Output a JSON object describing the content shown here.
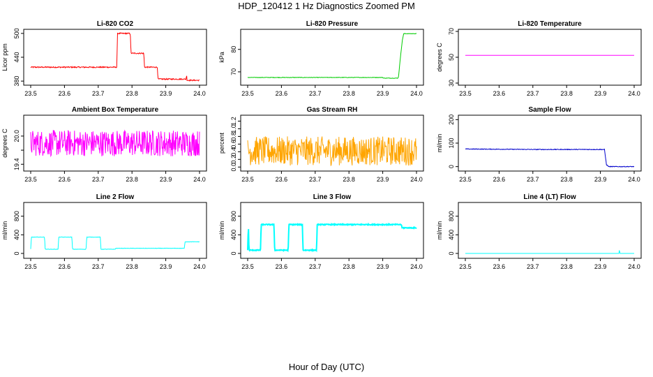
{
  "figure": {
    "title": "HDP_120412  1 Hz Diagnostics Zoomed PM",
    "xlabel": "Hour of Day (UTC)"
  },
  "chart_data": [
    {
      "type": "line",
      "title": "Li-820 CO2",
      "ylabel": "Licor ppm",
      "color": "#ff0000",
      "xlim": [
        23.5,
        24.0
      ],
      "ylim": [
        375,
        505
      ],
      "xticks": [
        "23.5",
        "23.6",
        "23.7",
        "23.8",
        "23.9",
        "24.0"
      ],
      "yticks": [
        380,
        440,
        500
      ],
      "yticklabels": [
        "380",
        "440",
        "500"
      ],
      "noise": 1.5,
      "series": [
        {
          "x": [
            23.5,
            23.755,
            23.757,
            23.795,
            23.797,
            23.835,
            23.837,
            23.875,
            23.877,
            23.96,
            23.962,
            23.963,
            23.965,
            24.0
          ],
          "y": [
            415,
            415,
            500,
            500,
            450,
            450,
            415,
            415,
            385,
            385,
            395,
            382,
            382,
            382
          ]
        }
      ]
    },
    {
      "type": "line",
      "title": "Li-820 Pressure",
      "ylabel": "kPa",
      "color": "#00cc00",
      "xlim": [
        23.5,
        24.0
      ],
      "ylim": [
        65,
        88
      ],
      "xticks": [
        "23.5",
        "23.6",
        "23.7",
        "23.8",
        "23.9",
        "24.0"
      ],
      "yticks": [
        70,
        80
      ],
      "yticklabels": [
        "70",
        "80"
      ],
      "noise": 0.1,
      "series": [
        {
          "x": [
            23.5,
            23.9,
            23.902,
            23.945,
            23.947,
            23.952,
            23.958,
            23.962,
            23.964,
            24.0
          ],
          "y": [
            67.5,
            67.5,
            67.2,
            67.2,
            68,
            76,
            84,
            87,
            87,
            87
          ]
        }
      ]
    },
    {
      "type": "line",
      "title": "Li-820 Temperature",
      "ylabel": "degrees C",
      "color": "#ff00ff",
      "xlim": [
        23.5,
        24.0
      ],
      "ylim": [
        30,
        70
      ],
      "xticks": [
        "23.5",
        "23.6",
        "23.7",
        "23.8",
        "23.9",
        "24.0"
      ],
      "yticks": [
        30,
        50,
        70
      ],
      "yticklabels": [
        "30",
        "50",
        "70"
      ],
      "noise": 0,
      "series": [
        {
          "x": [
            23.5,
            24.0
          ],
          "y": [
            51.5,
            51.5
          ]
        }
      ]
    },
    {
      "type": "line",
      "title": "Ambient Box Temperature",
      "ylabel": "degrees C",
      "color": "#ff00ff",
      "xlim": [
        23.5,
        24.0
      ],
      "ylim": [
        19.3,
        20.4
      ],
      "xticks": [
        "23.5",
        "23.6",
        "23.7",
        "23.8",
        "23.9",
        "24.0"
      ],
      "yticks": [
        19.4,
        19.7,
        20.0
      ],
      "yticklabels": [
        "19.4",
        "",
        "20.0"
      ],
      "noise": 0.28,
      "series": [
        {
          "x": [
            23.5,
            24.0
          ],
          "y": [
            19.85,
            19.85
          ]
        }
      ]
    },
    {
      "type": "line",
      "title": "Gas Stream RH",
      "ylabel": "percent",
      "color": "#ffa500",
      "xlim": [
        23.5,
        24.0
      ],
      "ylim": [
        -0.05,
        1.3
      ],
      "xticks": [
        "23.5",
        "23.6",
        "23.7",
        "23.8",
        "23.9",
        "24.0"
      ],
      "yticks": [
        0.0,
        0.2,
        0.4,
        0.6,
        0.8,
        1.0,
        1.2
      ],
      "yticklabels": [
        "0.0",
        "0.2",
        "0.4",
        "0.6",
        "0.8",
        "1.0",
        "1.2"
      ],
      "noise": 0.38,
      "series": [
        {
          "x": [
            23.5,
            24.0
          ],
          "y": [
            0.42,
            0.42
          ]
        }
      ]
    },
    {
      "type": "line",
      "title": "Sample Flow",
      "ylabel": "ml/min",
      "color": "#0000cc",
      "xlim": [
        23.5,
        24.0
      ],
      "ylim": [
        -10,
        210
      ],
      "xticks": [
        "23.5",
        "23.6",
        "23.7",
        "23.8",
        "23.9",
        "24.0"
      ],
      "yticks": [
        0,
        100,
        200
      ],
      "yticklabels": [
        "0",
        "100",
        "200"
      ],
      "noise": 1.5,
      "series": [
        {
          "x": [
            23.5,
            23.6,
            23.7,
            23.912,
            23.918,
            23.925,
            24.0
          ],
          "y": [
            75,
            74,
            73,
            73,
            8,
            0,
            0
          ]
        }
      ]
    },
    {
      "type": "line",
      "title": "Line 2 Flow",
      "ylabel": "ml/min",
      "color": "#00ffff",
      "xlim": [
        23.5,
        24.0
      ],
      "ylim": [
        -60,
        1050
      ],
      "xticks": [
        "23.5",
        "23.6",
        "23.7",
        "23.8",
        "23.9",
        "24.0"
      ],
      "yticks": [
        0,
        400,
        800
      ],
      "yticklabels": [
        "0",
        "400",
        "800"
      ],
      "noise": 4,
      "series": [
        {
          "x": [
            23.5,
            23.502,
            23.541,
            23.543,
            23.581,
            23.583,
            23.622,
            23.624,
            23.664,
            23.666,
            23.706,
            23.708,
            23.75,
            23.752,
            23.955,
            23.957,
            24.0
          ],
          "y": [
            90,
            350,
            350,
            90,
            90,
            350,
            350,
            90,
            90,
            350,
            350,
            90,
            90,
            110,
            110,
            250,
            250
          ]
        }
      ]
    },
    {
      "type": "line",
      "title": "Line 3 Flow",
      "ylabel": "ml/min",
      "color": "#00ffff",
      "xlim": [
        23.5,
        24.0
      ],
      "ylim": [
        -60,
        1050
      ],
      "xticks": [
        "23.5",
        "23.6",
        "23.7",
        "23.8",
        "23.9",
        "24.0"
      ],
      "yticks": [
        0,
        400,
        800
      ],
      "yticklabels": [
        "0",
        "400",
        "800"
      ],
      "noise": 10,
      "series": [
        {
          "x": [
            23.5,
            23.502,
            23.504,
            23.538,
            23.54,
            23.578,
            23.58,
            23.62,
            23.622,
            23.662,
            23.664,
            23.704,
            23.706,
            23.955,
            23.957,
            24.0
          ],
          "y": [
            70,
            620,
            70,
            70,
            620,
            620,
            70,
            70,
            620,
            620,
            70,
            70,
            620,
            620,
            550,
            550
          ]
        }
      ]
    },
    {
      "type": "line",
      "title": "Line 4 (LT) Flow",
      "ylabel": "ml/min",
      "color": "#00ffff",
      "xlim": [
        23.5,
        24.0
      ],
      "ylim": [
        -60,
        1050
      ],
      "xticks": [
        "23.5",
        "23.6",
        "23.7",
        "23.8",
        "23.9",
        "24.0"
      ],
      "yticks": [
        0,
        400,
        800
      ],
      "yticklabels": [
        "0",
        "400",
        "800"
      ],
      "noise": 0,
      "series": [
        {
          "x": [
            23.5,
            23.955,
            23.956,
            23.957,
            23.958,
            24.0
          ],
          "y": [
            0,
            0,
            70,
            40,
            0,
            0
          ]
        }
      ]
    }
  ]
}
